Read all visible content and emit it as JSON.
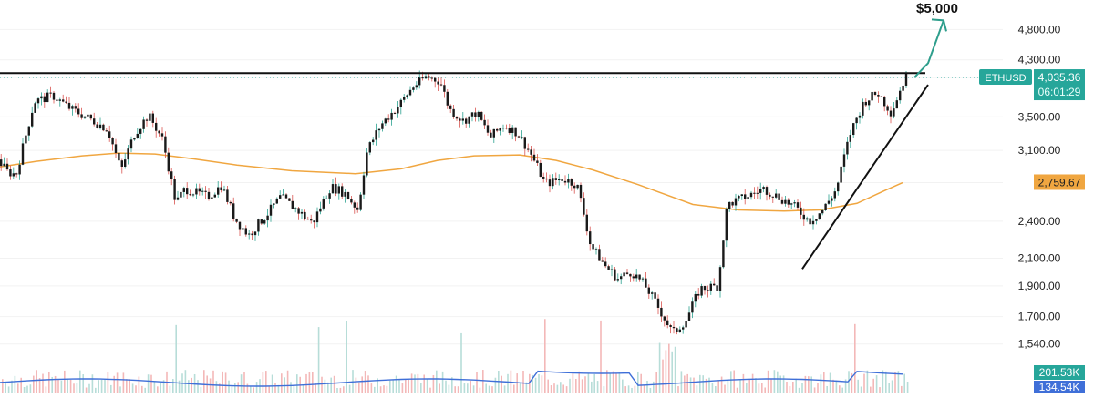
{
  "chart_data": {
    "type": "candlestick",
    "symbol": "ETHUSD",
    "annotation_target": "$5,000",
    "y_axis": {
      "scale": "log",
      "ticks": [
        1540,
        1700,
        1900,
        2100,
        2400,
        2759.67,
        3100,
        3500,
        4035.36,
        4300,
        4800
      ],
      "tick_labels": [
        "1,540.00",
        "1,700.00",
        "1,900.00",
        "2,100.00",
        "2,400.00",
        "2,759.67",
        "3,100.00",
        "3,500.00",
        "4,035.36",
        "4,300.00",
        "4,800.00"
      ],
      "range": [
        1450,
        5200
      ]
    },
    "price_label": {
      "symbol": "ETHUSD",
      "value": "4,035.36",
      "countdown": "06:01:29",
      "color": "#26a69a"
    },
    "moving_average": {
      "value": "2,759.67",
      "color": "#f0a640",
      "path": [
        [
          0,
          2920
        ],
        [
          40,
          2980
        ],
        [
          90,
          3040
        ],
        [
          130,
          3070
        ],
        [
          170,
          3060
        ],
        [
          210,
          3010
        ],
        [
          260,
          2940
        ],
        [
          320,
          2880
        ],
        [
          390,
          2850
        ],
        [
          440,
          2900
        ],
        [
          480,
          2990
        ],
        [
          520,
          3040
        ],
        [
          570,
          3050
        ],
        [
          610,
          2990
        ],
        [
          650,
          2890
        ],
        [
          700,
          2740
        ],
        [
          760,
          2550
        ],
        [
          810,
          2500
        ],
        [
          860,
          2490
        ],
        [
          900,
          2500
        ],
        [
          940,
          2560
        ],
        [
          970,
          2680
        ],
        [
          990,
          2759
        ]
      ]
    },
    "resistance_level": 4100,
    "trendline": [
      [
        880,
        2020
      ],
      [
        1018,
        3930
      ]
    ],
    "projection_arrow": [
      [
        1003,
        4035
      ],
      [
        1018,
        4250
      ],
      [
        1035,
        4960
      ]
    ],
    "volume_labels": [
      "201.53K",
      "134.54K"
    ],
    "price_path": [
      [
        0,
        3000
      ],
      [
        10,
        2870
      ],
      [
        20,
        2840
      ],
      [
        30,
        3250
      ],
      [
        40,
        3700
      ],
      [
        60,
        3780
      ],
      [
        80,
        3600
      ],
      [
        100,
        3480
      ],
      [
        120,
        3350
      ],
      [
        135,
        2880
      ],
      [
        150,
        3300
      ],
      [
        165,
        3520
      ],
      [
        180,
        3240
      ],
      [
        195,
        2560
      ],
      [
        205,
        2700
      ],
      [
        230,
        2620
      ],
      [
        245,
        2730
      ],
      [
        260,
        2420
      ],
      [
        275,
        2280
      ],
      [
        295,
        2460
      ],
      [
        310,
        2620
      ],
      [
        325,
        2520
      ],
      [
        345,
        2380
      ],
      [
        365,
        2720
      ],
      [
        380,
        2660
      ],
      [
        395,
        2500
      ],
      [
        405,
        3100
      ],
      [
        420,
        3400
      ],
      [
        440,
        3650
      ],
      [
        455,
        3900
      ],
      [
        470,
        4050
      ],
      [
        485,
        3980
      ],
      [
        495,
        3600
      ],
      [
        510,
        3450
      ],
      [
        525,
        3550
      ],
      [
        540,
        3250
      ],
      [
        555,
        3400
      ],
      [
        570,
        3300
      ],
      [
        585,
        3050
      ],
      [
        600,
        2750
      ],
      [
        620,
        2800
      ],
      [
        635,
        2740
      ],
      [
        650,
        2200
      ],
      [
        665,
        2050
      ],
      [
        680,
        1950
      ],
      [
        695,
        2000
      ],
      [
        710,
        1900
      ],
      [
        725,
        1750
      ],
      [
        740,
        1600
      ],
      [
        755,
        1680
      ],
      [
        770,
        1880
      ],
      [
        790,
        1900
      ],
      [
        800,
        2550
      ],
      [
        820,
        2620
      ],
      [
        840,
        2700
      ],
      [
        860,
        2600
      ],
      [
        875,
        2520
      ],
      [
        890,
        2400
      ],
      [
        905,
        2500
      ],
      [
        920,
        2700
      ],
      [
        935,
        3300
      ],
      [
        950,
        3700
      ],
      [
        965,
        3820
      ],
      [
        980,
        3550
      ],
      [
        995,
        4035
      ]
    ]
  }
}
